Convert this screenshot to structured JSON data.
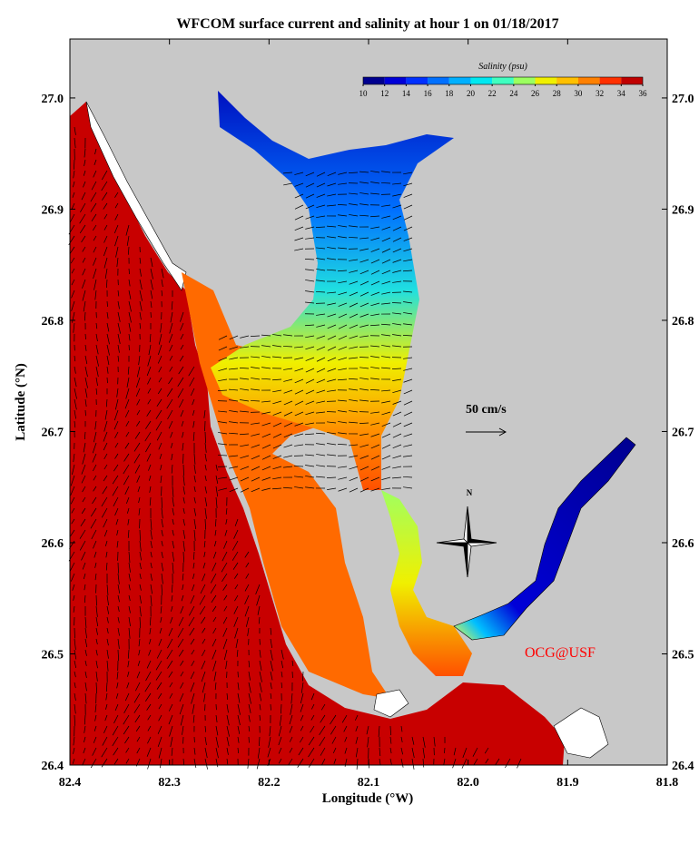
{
  "title": "WFCOM surface current and salinity at hour 1 on 01/18/2017",
  "x_axis": {
    "label": "Longitude (°W)",
    "lim": [
      82.4,
      81.8
    ],
    "ticks": [
      82.4,
      82.3,
      82.2,
      82.1,
      {
        "value": 82.0,
        "label": "82.0"
      },
      81.9,
      81.8
    ]
  },
  "y_axis": {
    "label": "Latitude (°N)",
    "lim": [
      26.4,
      27.053
    ],
    "ticks": [
      26.4,
      26.5,
      26.6,
      26.7,
      26.8,
      26.9,
      {
        "value": 27.0,
        "label": "27.0"
      }
    ]
  },
  "colorbar": {
    "label": "Salinity (psu)",
    "lim": [
      10,
      36
    ],
    "ticks": [
      10,
      12,
      14,
      16,
      18,
      20,
      22,
      24,
      26,
      28,
      30,
      32,
      34,
      36
    ],
    "colors": [
      "#00008f",
      "#0000d8",
      "#0030ff",
      "#0070ff",
      "#00b0ff",
      "#00e8f0",
      "#40ffc0",
      "#9cff60",
      "#f0f000",
      "#ffc000",
      "#ff8000",
      "#ff3000",
      "#c00000"
    ]
  },
  "scale_label": "50 cm/s",
  "north_label": "N",
  "credit": "OCG@USF"
}
